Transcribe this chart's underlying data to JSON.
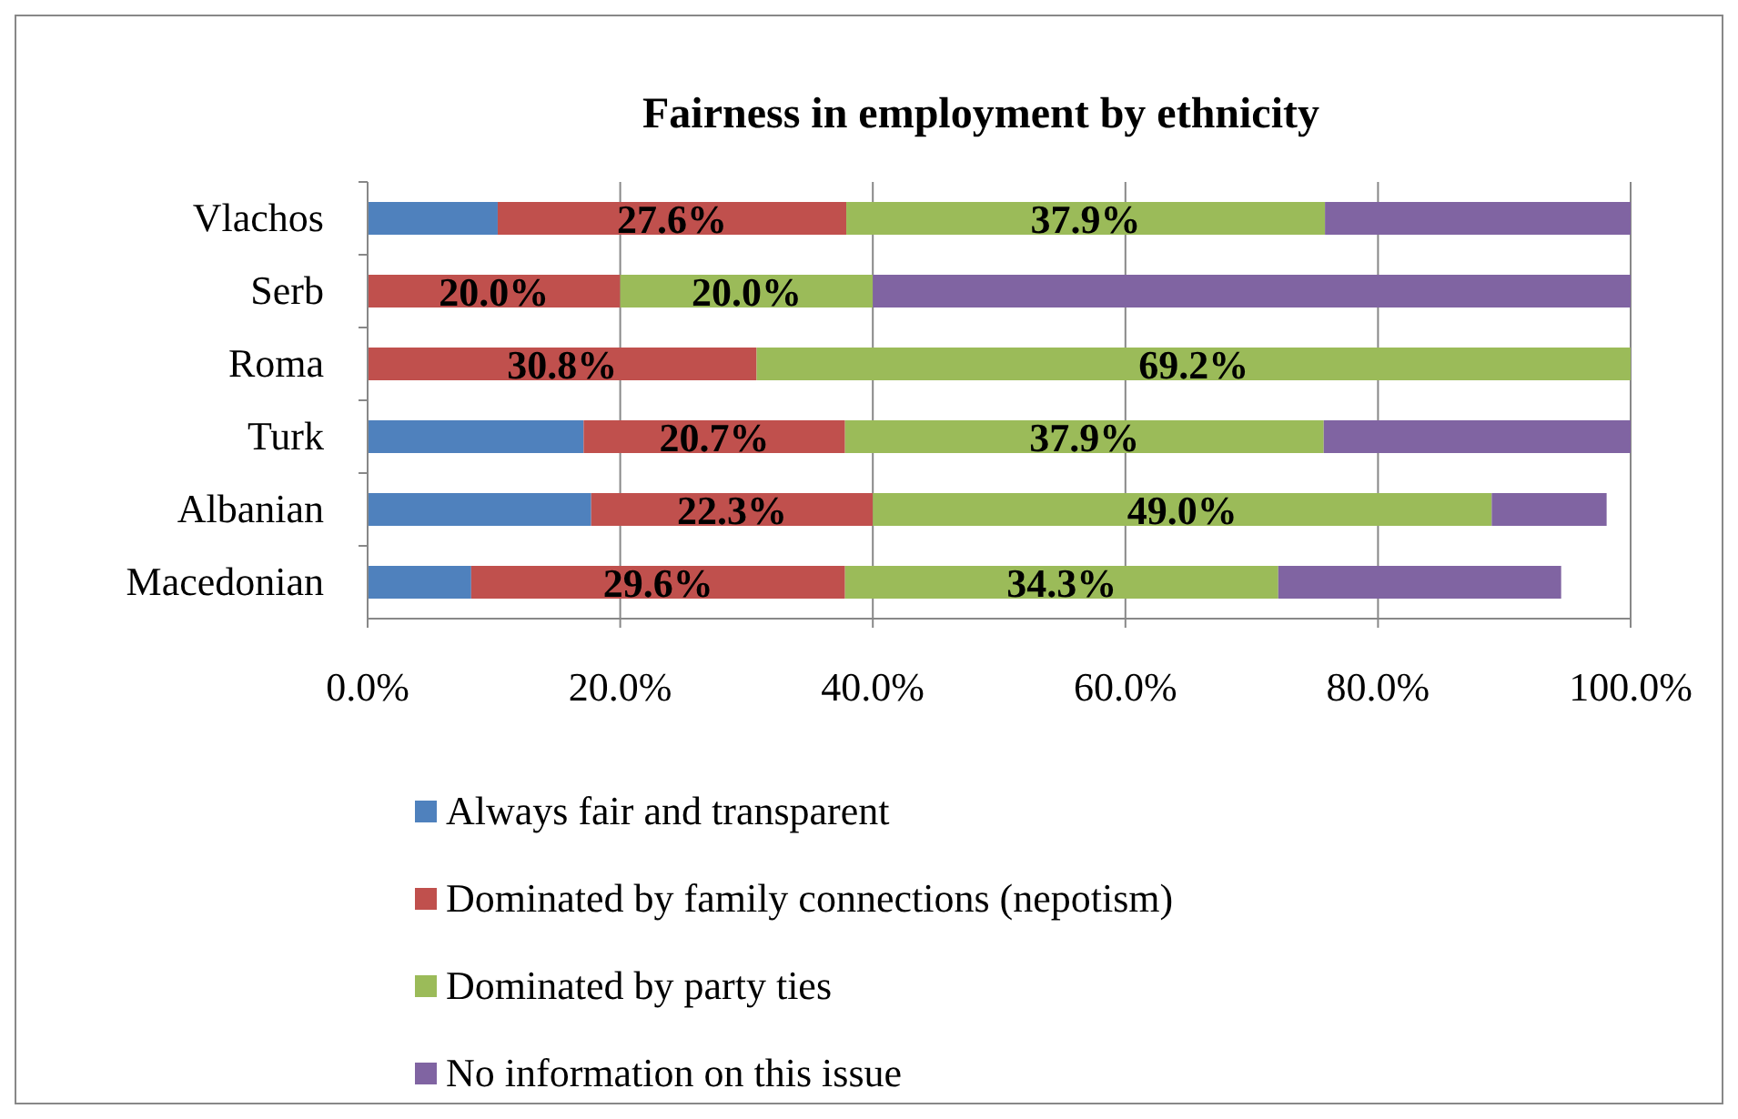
{
  "chart_data": {
    "type": "bar",
    "orientation": "horizontal",
    "stacked": true,
    "title": "Fairness in employment by ethnicity",
    "categories": [
      "Vlachos",
      "Serb",
      "Roma",
      "Turk",
      "Albanian",
      "Macedonian"
    ],
    "series": [
      {
        "name": "Always fair and transparent",
        "color": "#4f81bd",
        "values": [
          10.3,
          null,
          null,
          17.1,
          17.7,
          8.2
        ]
      },
      {
        "name": "Dominated by family connections (nepotism)",
        "color": "#c0504d",
        "values": [
          27.6,
          20.0,
          30.8,
          20.7,
          22.3,
          29.6
        ],
        "value_labels": [
          "27.6%",
          "20.0%",
          "30.8%",
          "20.7%",
          "22.3%",
          "29.6%"
        ]
      },
      {
        "name": "Dominated by party ties",
        "color": "#9bbb59",
        "values": [
          37.9,
          20.0,
          69.2,
          37.9,
          49.0,
          34.3
        ],
        "value_labels": [
          "37.9%",
          "20.0%",
          "69.2%",
          "37.9%",
          "49.0%",
          "34.3%"
        ]
      },
      {
        "name": "No information on this issue",
        "color": "#8064a2",
        "values": [
          24.2,
          60.0,
          null,
          24.3,
          9.1,
          22.4
        ]
      }
    ],
    "xlim": [
      0,
      100
    ],
    "xticks": [
      {
        "value": 0,
        "label": "0.0%"
      },
      {
        "value": 20,
        "label": "20.0%"
      },
      {
        "value": 40,
        "label": "40.0%"
      },
      {
        "value": 60,
        "label": "60.0%"
      },
      {
        "value": 80,
        "label": "80.0%"
      },
      {
        "value": 100,
        "label": "100.0%"
      }
    ],
    "grid": "x",
    "legend": "bottom"
  }
}
